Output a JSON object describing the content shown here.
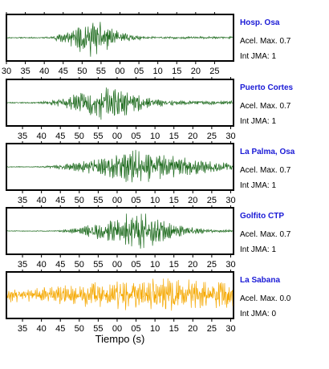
{
  "chart_data": {
    "type": "line",
    "title": "",
    "xlabel": "Tiempo (s)",
    "ylabel": "",
    "grid": false,
    "station_name_color": "#1a1ad6",
    "acel_label": "Acel. Max.",
    "jma_label": "Int JMA:",
    "panels": [
      {
        "station": "Hosp. Osa",
        "acel_max": "0.7",
        "int_jma": "1",
        "color": "#1e6b1e",
        "tick_labels": [
          "30",
          "35",
          "40",
          "45",
          "50",
          "55",
          "00",
          "05",
          "10",
          "15",
          "20",
          "25"
        ],
        "signal": {
          "onset": 0.16,
          "peak": 0.36,
          "decay": 0.13,
          "peak_amp": 0.95,
          "pre_amp": 0.03,
          "tail_amp": 0.06,
          "seed": 11
        }
      },
      {
        "station": "Puerto Cortes",
        "acel_max": "0.7",
        "int_jma": "1",
        "color": "#1e6b1e",
        "tick_labels": [
          "35",
          "40",
          "45",
          "50",
          "55",
          "00",
          "05",
          "10",
          "15",
          "20",
          "25",
          "30"
        ],
        "signal": {
          "onset": 0.12,
          "peak": 0.42,
          "decay": 0.18,
          "peak_amp": 0.9,
          "pre_amp": 0.03,
          "tail_amp": 0.1,
          "seed": 23
        }
      },
      {
        "station": "La Palma, Osa",
        "acel_max": "0.7",
        "int_jma": "1",
        "color": "#1e6b1e",
        "tick_labels": [
          "35",
          "40",
          "45",
          "50",
          "55",
          "00",
          "05",
          "10",
          "15",
          "20",
          "25",
          "30"
        ],
        "signal": {
          "onset": 0.12,
          "peak": 0.55,
          "decay": 0.28,
          "peak_amp": 0.85,
          "pre_amp": 0.02,
          "tail_amp": 0.14,
          "seed": 37
        }
      },
      {
        "station": "Golfito CTP",
        "acel_max": "0.7",
        "int_jma": "1",
        "color": "#1e6b1e",
        "tick_labels": [
          "35",
          "40",
          "45",
          "50",
          "55",
          "00",
          "05",
          "10",
          "15",
          "20",
          "25",
          "30"
        ],
        "signal": {
          "onset": 0.2,
          "peak": 0.55,
          "decay": 0.2,
          "peak_amp": 0.95,
          "pre_amp": 0.02,
          "tail_amp": 0.05,
          "seed": 51
        }
      },
      {
        "station": "La Sabana",
        "acel_max": "0.0",
        "int_jma": "0",
        "color": "#f5a800",
        "tick_labels": [
          "35",
          "40",
          "45",
          "50",
          "55",
          "00",
          "05",
          "10",
          "15",
          "20",
          "25",
          "30"
        ],
        "signal": {
          "onset": 0.0,
          "peak": 0.55,
          "decay": 0.6,
          "peak_amp": 0.85,
          "pre_amp": 0.35,
          "tail_amp": 0.35,
          "seed": 77
        }
      }
    ]
  }
}
